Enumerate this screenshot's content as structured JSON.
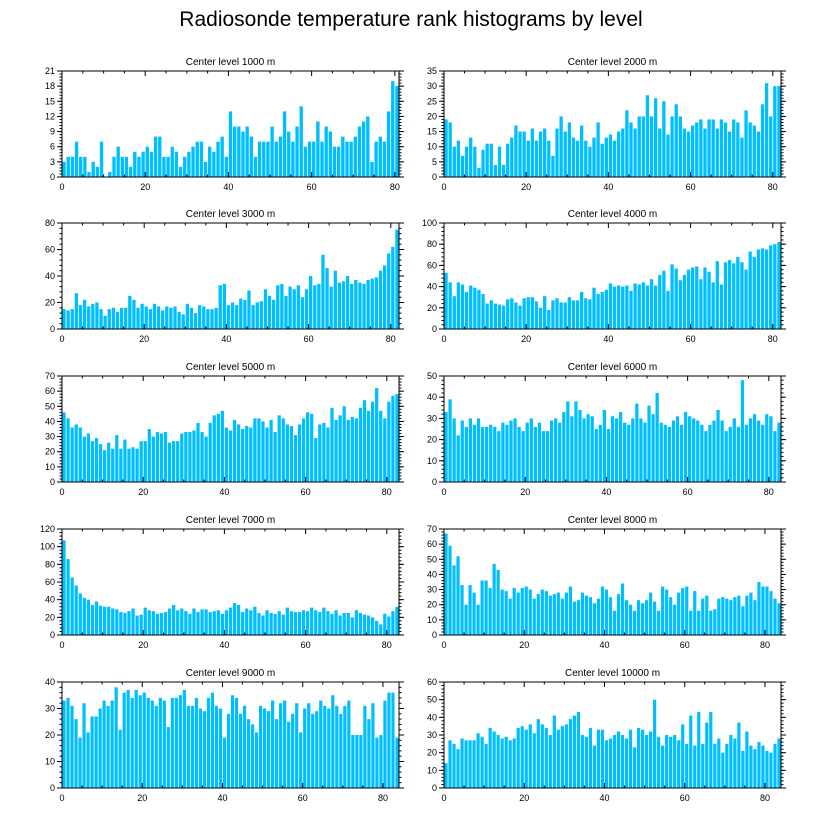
{
  "figure_title": "Radiosonde temperature rank histograms by level",
  "bar_color": "#00bfff",
  "chart_data": [
    {
      "type": "bar",
      "title": "Center level 1000 m",
      "x_start": 0,
      "x_ticks": [
        0,
        20,
        40,
        60,
        80
      ],
      "ylim": [
        0,
        21
      ],
      "y_ticks": [
        0,
        3,
        6,
        9,
        12,
        15,
        18,
        21
      ],
      "values": [
        3,
        4,
        4,
        7,
        4,
        4,
        1,
        3,
        2,
        7,
        0,
        1,
        4,
        6,
        4,
        4,
        2,
        5,
        4,
        5,
        6,
        5,
        8,
        8,
        4,
        4,
        6,
        5,
        2,
        4,
        5,
        6,
        7,
        7,
        3,
        6,
        5,
        7,
        8,
        4,
        13,
        10,
        10,
        9,
        10,
        8,
        4,
        7,
        7,
        7,
        10,
        7,
        8,
        13,
        9,
        7,
        10,
        14,
        6,
        7,
        7,
        11,
        7,
        10,
        9,
        6,
        6,
        8,
        7,
        7,
        8,
        10,
        11,
        12,
        3,
        7,
        8,
        7,
        13,
        19,
        18
      ]
    },
    {
      "type": "bar",
      "title": "Center level 2000 m",
      "x_start": 0,
      "x_ticks": [
        0,
        20,
        40,
        60,
        80
      ],
      "ylim": [
        0,
        35
      ],
      "y_ticks": [
        0,
        5,
        10,
        15,
        20,
        25,
        30,
        35
      ],
      "values": [
        19,
        18,
        10,
        12,
        7,
        10,
        13,
        10,
        3,
        9,
        11,
        11,
        4,
        10,
        4,
        11,
        13,
        17,
        15,
        15,
        12,
        16,
        12,
        15,
        16,
        12,
        7,
        16,
        20,
        15,
        18,
        13,
        12,
        17,
        12,
        10,
        13,
        18,
        11,
        13,
        14,
        12,
        15,
        16,
        22,
        18,
        16,
        20,
        20,
        27,
        20,
        26,
        16,
        25,
        14,
        20,
        24,
        20,
        16,
        15,
        17,
        18,
        19,
        16,
        19,
        19,
        16,
        19,
        18,
        15,
        19,
        18,
        13,
        22,
        18,
        17,
        15,
        24,
        31,
        20,
        30,
        30
      ]
    },
    {
      "type": "bar",
      "title": "Center level 3000 m",
      "x_start": 0,
      "x_ticks": [
        0,
        20,
        40,
        60,
        80
      ],
      "ylim": [
        0,
        80
      ],
      "y_ticks": [
        0,
        20,
        40,
        60,
        80
      ],
      "values": [
        15,
        14,
        15,
        27,
        18,
        22,
        17,
        19,
        20,
        15,
        10,
        15,
        16,
        13,
        16,
        16,
        25,
        22,
        16,
        19,
        17,
        15,
        19,
        17,
        14,
        17,
        16,
        17,
        13,
        11,
        19,
        16,
        12,
        18,
        17,
        15,
        15,
        16,
        33,
        34,
        18,
        20,
        18,
        23,
        22,
        29,
        18,
        20,
        21,
        30,
        25,
        22,
        33,
        34,
        25,
        32,
        30,
        33,
        24,
        30,
        40,
        33,
        34,
        56,
        46,
        32,
        44,
        35,
        36,
        40,
        34,
        37,
        35,
        34,
        37,
        38,
        39,
        44,
        48,
        57,
        62,
        75
      ]
    },
    {
      "type": "bar",
      "title": "Center level 4000 m",
      "x_start": 0,
      "x_ticks": [
        0,
        20,
        40,
        60,
        80
      ],
      "ylim": [
        0,
        100
      ],
      "y_ticks": [
        0,
        20,
        40,
        60,
        80,
        100
      ],
      "values": [
        53,
        44,
        31,
        44,
        42,
        35,
        41,
        39,
        37,
        33,
        24,
        27,
        24,
        23,
        22,
        28,
        29,
        25,
        22,
        29,
        30,
        30,
        26,
        20,
        31,
        18,
        27,
        29,
        25,
        25,
        30,
        27,
        27,
        35,
        29,
        28,
        39,
        33,
        35,
        37,
        43,
        40,
        41,
        40,
        41,
        36,
        43,
        42,
        44,
        41,
        47,
        41,
        51,
        55,
        36,
        61,
        57,
        46,
        51,
        56,
        58,
        59,
        47,
        58,
        54,
        44,
        64,
        42,
        63,
        65,
        62,
        68,
        63,
        56,
        73,
        68,
        75,
        76,
        75,
        79,
        80,
        82
      ]
    },
    {
      "type": "bar",
      "title": "Center level 5000 m",
      "x_start": 0,
      "x_ticks": [
        0,
        20,
        40,
        60,
        80
      ],
      "ylim": [
        0,
        70
      ],
      "y_ticks": [
        0,
        10,
        20,
        30,
        40,
        50,
        60,
        70
      ],
      "values": [
        46,
        42,
        36,
        38,
        36,
        30,
        32,
        27,
        29,
        25,
        21,
        26,
        22,
        31,
        22,
        28,
        22,
        23,
        22,
        27,
        27,
        35,
        30,
        33,
        32,
        33,
        26,
        27,
        27,
        32,
        33,
        33,
        34,
        39,
        33,
        30,
        39,
        44,
        45,
        47,
        36,
        34,
        41,
        38,
        35,
        37,
        36,
        42,
        42,
        40,
        36,
        41,
        33,
        44,
        42,
        38,
        37,
        31,
        38,
        42,
        46,
        45,
        29,
        38,
        39,
        36,
        49,
        41,
        44,
        50,
        41,
        43,
        42,
        49,
        54,
        47,
        53,
        62,
        47,
        42,
        53,
        57,
        58
      ]
    },
    {
      "type": "bar",
      "title": "Center level 6000 m",
      "x_start": 0,
      "x_ticks": [
        0,
        20,
        40,
        60,
        80
      ],
      "ylim": [
        0,
        50
      ],
      "y_ticks": [
        0,
        10,
        20,
        30,
        40,
        50
      ],
      "values": [
        33,
        39,
        30,
        22,
        29,
        26,
        30,
        27,
        30,
        26,
        26,
        27,
        26,
        24,
        28,
        27,
        29,
        30,
        26,
        24,
        28,
        30,
        26,
        28,
        24,
        24,
        29,
        30,
        28,
        33,
        38,
        31,
        38,
        34,
        30,
        32,
        31,
        25,
        27,
        34,
        25,
        31,
        30,
        33,
        28,
        27,
        30,
        37,
        30,
        28,
        36,
        32,
        42,
        28,
        27,
        26,
        29,
        31,
        27,
        33,
        31,
        30,
        29,
        27,
        24,
        27,
        29,
        34,
        29,
        24,
        26,
        30,
        26,
        48,
        27,
        30,
        32,
        29,
        27,
        32,
        31,
        24,
        28
      ]
    },
    {
      "type": "bar",
      "title": "Center level 7000 m",
      "x_start": 0,
      "x_ticks": [
        0,
        20,
        40,
        60,
        80
      ],
      "ylim": [
        0,
        120
      ],
      "y_ticks": [
        0,
        20,
        40,
        60,
        80,
        100,
        120
      ],
      "values": [
        107,
        86,
        65,
        56,
        47,
        42,
        40,
        34,
        38,
        33,
        32,
        32,
        30,
        29,
        26,
        25,
        27,
        30,
        22,
        23,
        31,
        28,
        27,
        24,
        25,
        26,
        30,
        34,
        28,
        30,
        27,
        24,
        30,
        26,
        29,
        29,
        26,
        27,
        28,
        24,
        28,
        31,
        36,
        34,
        26,
        30,
        28,
        32,
        25,
        22,
        28,
        25,
        24,
        27,
        23,
        31,
        27,
        26,
        26,
        28,
        27,
        31,
        28,
        26,
        31,
        27,
        24,
        28,
        22,
        25,
        25,
        20,
        28,
        25,
        23,
        22,
        20,
        16,
        12,
        24,
        21,
        27,
        32
      ]
    },
    {
      "type": "bar",
      "title": "Center level 8000 m",
      "x_start": 0,
      "x_ticks": [
        0,
        20,
        40,
        60,
        80
      ],
      "ylim": [
        0,
        70
      ],
      "y_ticks": [
        0,
        10,
        20,
        30,
        40,
        50,
        60,
        70
      ],
      "values": [
        67,
        59,
        46,
        52,
        33,
        20,
        33,
        28,
        20,
        36,
        36,
        31,
        47,
        43,
        30,
        29,
        24,
        31,
        28,
        31,
        32,
        30,
        24,
        27,
        30,
        29,
        26,
        27,
        28,
        24,
        28,
        32,
        22,
        23,
        28,
        26,
        25,
        21,
        24,
        32,
        30,
        25,
        16,
        27,
        34,
        23,
        20,
        16,
        23,
        21,
        23,
        28,
        22,
        16,
        32,
        30,
        25,
        20,
        28,
        31,
        32,
        16,
        29,
        16,
        24,
        26,
        16,
        17,
        24,
        25,
        24,
        23,
        25,
        26,
        19,
        26,
        28,
        23,
        35,
        32,
        32,
        29,
        24,
        21
      ]
    },
    {
      "type": "bar",
      "title": "Center level 9000 m",
      "x_start": 0,
      "x_ticks": [
        0,
        20,
        40,
        60,
        80
      ],
      "ylim": [
        0,
        40
      ],
      "y_ticks": [
        0,
        10,
        20,
        30,
        40
      ],
      "values": [
        33,
        34,
        31,
        26,
        19,
        32,
        21,
        27,
        27,
        30,
        33,
        31,
        33,
        38,
        22,
        36,
        37,
        34,
        37,
        35,
        36,
        34,
        33,
        31,
        34,
        33,
        23,
        34,
        34,
        35,
        37,
        31,
        31,
        34,
        30,
        29,
        34,
        36,
        31,
        30,
        19,
        28,
        35,
        34,
        28,
        31,
        26,
        24,
        21,
        31,
        30,
        29,
        33,
        26,
        32,
        33,
        25,
        28,
        32,
        21,
        30,
        32,
        28,
        29,
        33,
        31,
        30,
        35,
        31,
        28,
        31,
        33,
        20,
        20,
        20,
        31,
        26,
        32,
        19,
        20,
        33,
        36,
        36,
        19
      ]
    },
    {
      "type": "bar",
      "title": "Center level 10000 m",
      "x_start": 0,
      "x_ticks": [
        0,
        20,
        40,
        60,
        80
      ],
      "ylim": [
        0,
        60
      ],
      "y_ticks": [
        0,
        10,
        20,
        30,
        40,
        50,
        60
      ],
      "values": [
        14,
        27,
        25,
        22,
        28,
        27,
        27,
        27,
        31,
        29,
        25,
        34,
        32,
        30,
        28,
        29,
        27,
        28,
        34,
        35,
        33,
        36,
        31,
        39,
        36,
        34,
        30,
        41,
        33,
        35,
        36,
        39,
        41,
        43,
        30,
        29,
        34,
        24,
        33,
        33,
        27,
        28,
        30,
        32,
        30,
        28,
        33,
        23,
        34,
        33,
        30,
        32,
        50,
        29,
        24,
        30,
        29,
        30,
        27,
        36,
        25,
        41,
        24,
        43,
        25,
        37,
        43,
        25,
        28,
        20,
        25,
        30,
        28,
        37,
        21,
        32,
        24,
        22,
        26,
        24,
        21,
        20,
        25,
        28
      ]
    }
  ]
}
